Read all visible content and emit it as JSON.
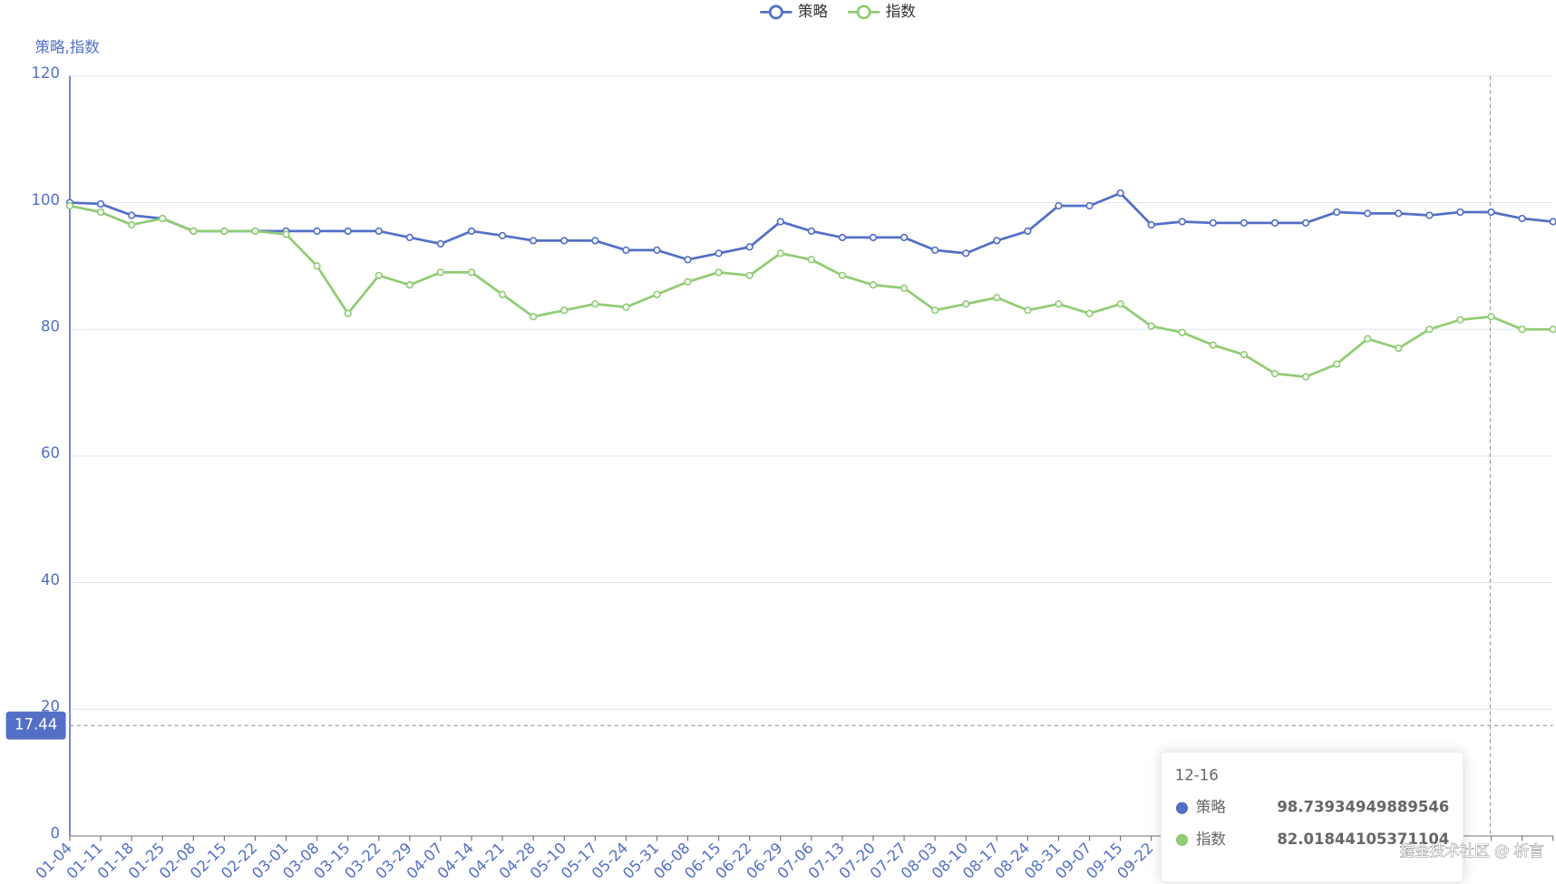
{
  "chart_data": {
    "type": "line",
    "y_axis_name": "策略,指数",
    "categories": [
      "01-04",
      "01-11",
      "01-18",
      "01-25",
      "02-08",
      "02-15",
      "02-22",
      "03-01",
      "03-08",
      "03-15",
      "03-22",
      "03-29",
      "04-07",
      "04-14",
      "04-21",
      "04-28",
      "05-10",
      "05-17",
      "05-24",
      "05-31",
      "06-08",
      "06-15",
      "06-22",
      "06-29",
      "07-06",
      "07-13",
      "07-20",
      "07-27",
      "08-03",
      "08-10",
      "08-17",
      "08-24",
      "08-31",
      "09-07",
      "09-15",
      "09-22",
      null,
      null,
      null,
      null,
      null,
      null,
      null,
      null,
      null,
      null,
      null,
      null,
      null
    ],
    "series": [
      {
        "name": "策略",
        "color": "#5470c6",
        "values": [
          100,
          99.8,
          98,
          97.5,
          95.5,
          95.5,
          95.5,
          95.5,
          95.5,
          95.5,
          95.5,
          94.5,
          93.5,
          95.5,
          94.8,
          94,
          94,
          94,
          92.5,
          92.5,
          91,
          92,
          93,
          97,
          95.5,
          94.5,
          94.5,
          94.5,
          92.5,
          92,
          94,
          95.5,
          99.5,
          99.5,
          101.5,
          96.5,
          97,
          96.8,
          96.8,
          96.8,
          96.8,
          98.5,
          98.3,
          98.3,
          98,
          98.5,
          98.5,
          97.5,
          97
        ]
      },
      {
        "name": "指数",
        "color": "#91cc75",
        "values": [
          99.5,
          98.5,
          96.5,
          97.5,
          95.5,
          95.5,
          95.5,
          95,
          90,
          82.5,
          88.5,
          87,
          89,
          89,
          85.5,
          82,
          83,
          84,
          83.5,
          85.5,
          87.5,
          89,
          88.5,
          92,
          91,
          88.5,
          87,
          86.5,
          83,
          84,
          85,
          83,
          84,
          82.5,
          84,
          80.5,
          79.5,
          77.5,
          76,
          73,
          72.5,
          74.5,
          78.5,
          77,
          80,
          81.5,
          82,
          80,
          80
        ]
      }
    ],
    "ylim": [
      0,
      120
    ],
    "yticks": [
      0,
      20,
      40,
      60,
      80,
      100,
      120
    ],
    "grid": true,
    "axis_pointer": 17.44,
    "tooltip": {
      "title": "12-16",
      "items": [
        {
          "name": "策略",
          "value": 98.73934949889546
        },
        {
          "name": "指数",
          "value": 82.01844105371104
        }
      ]
    },
    "watermark": "掘金技术社区 @ 析言"
  }
}
